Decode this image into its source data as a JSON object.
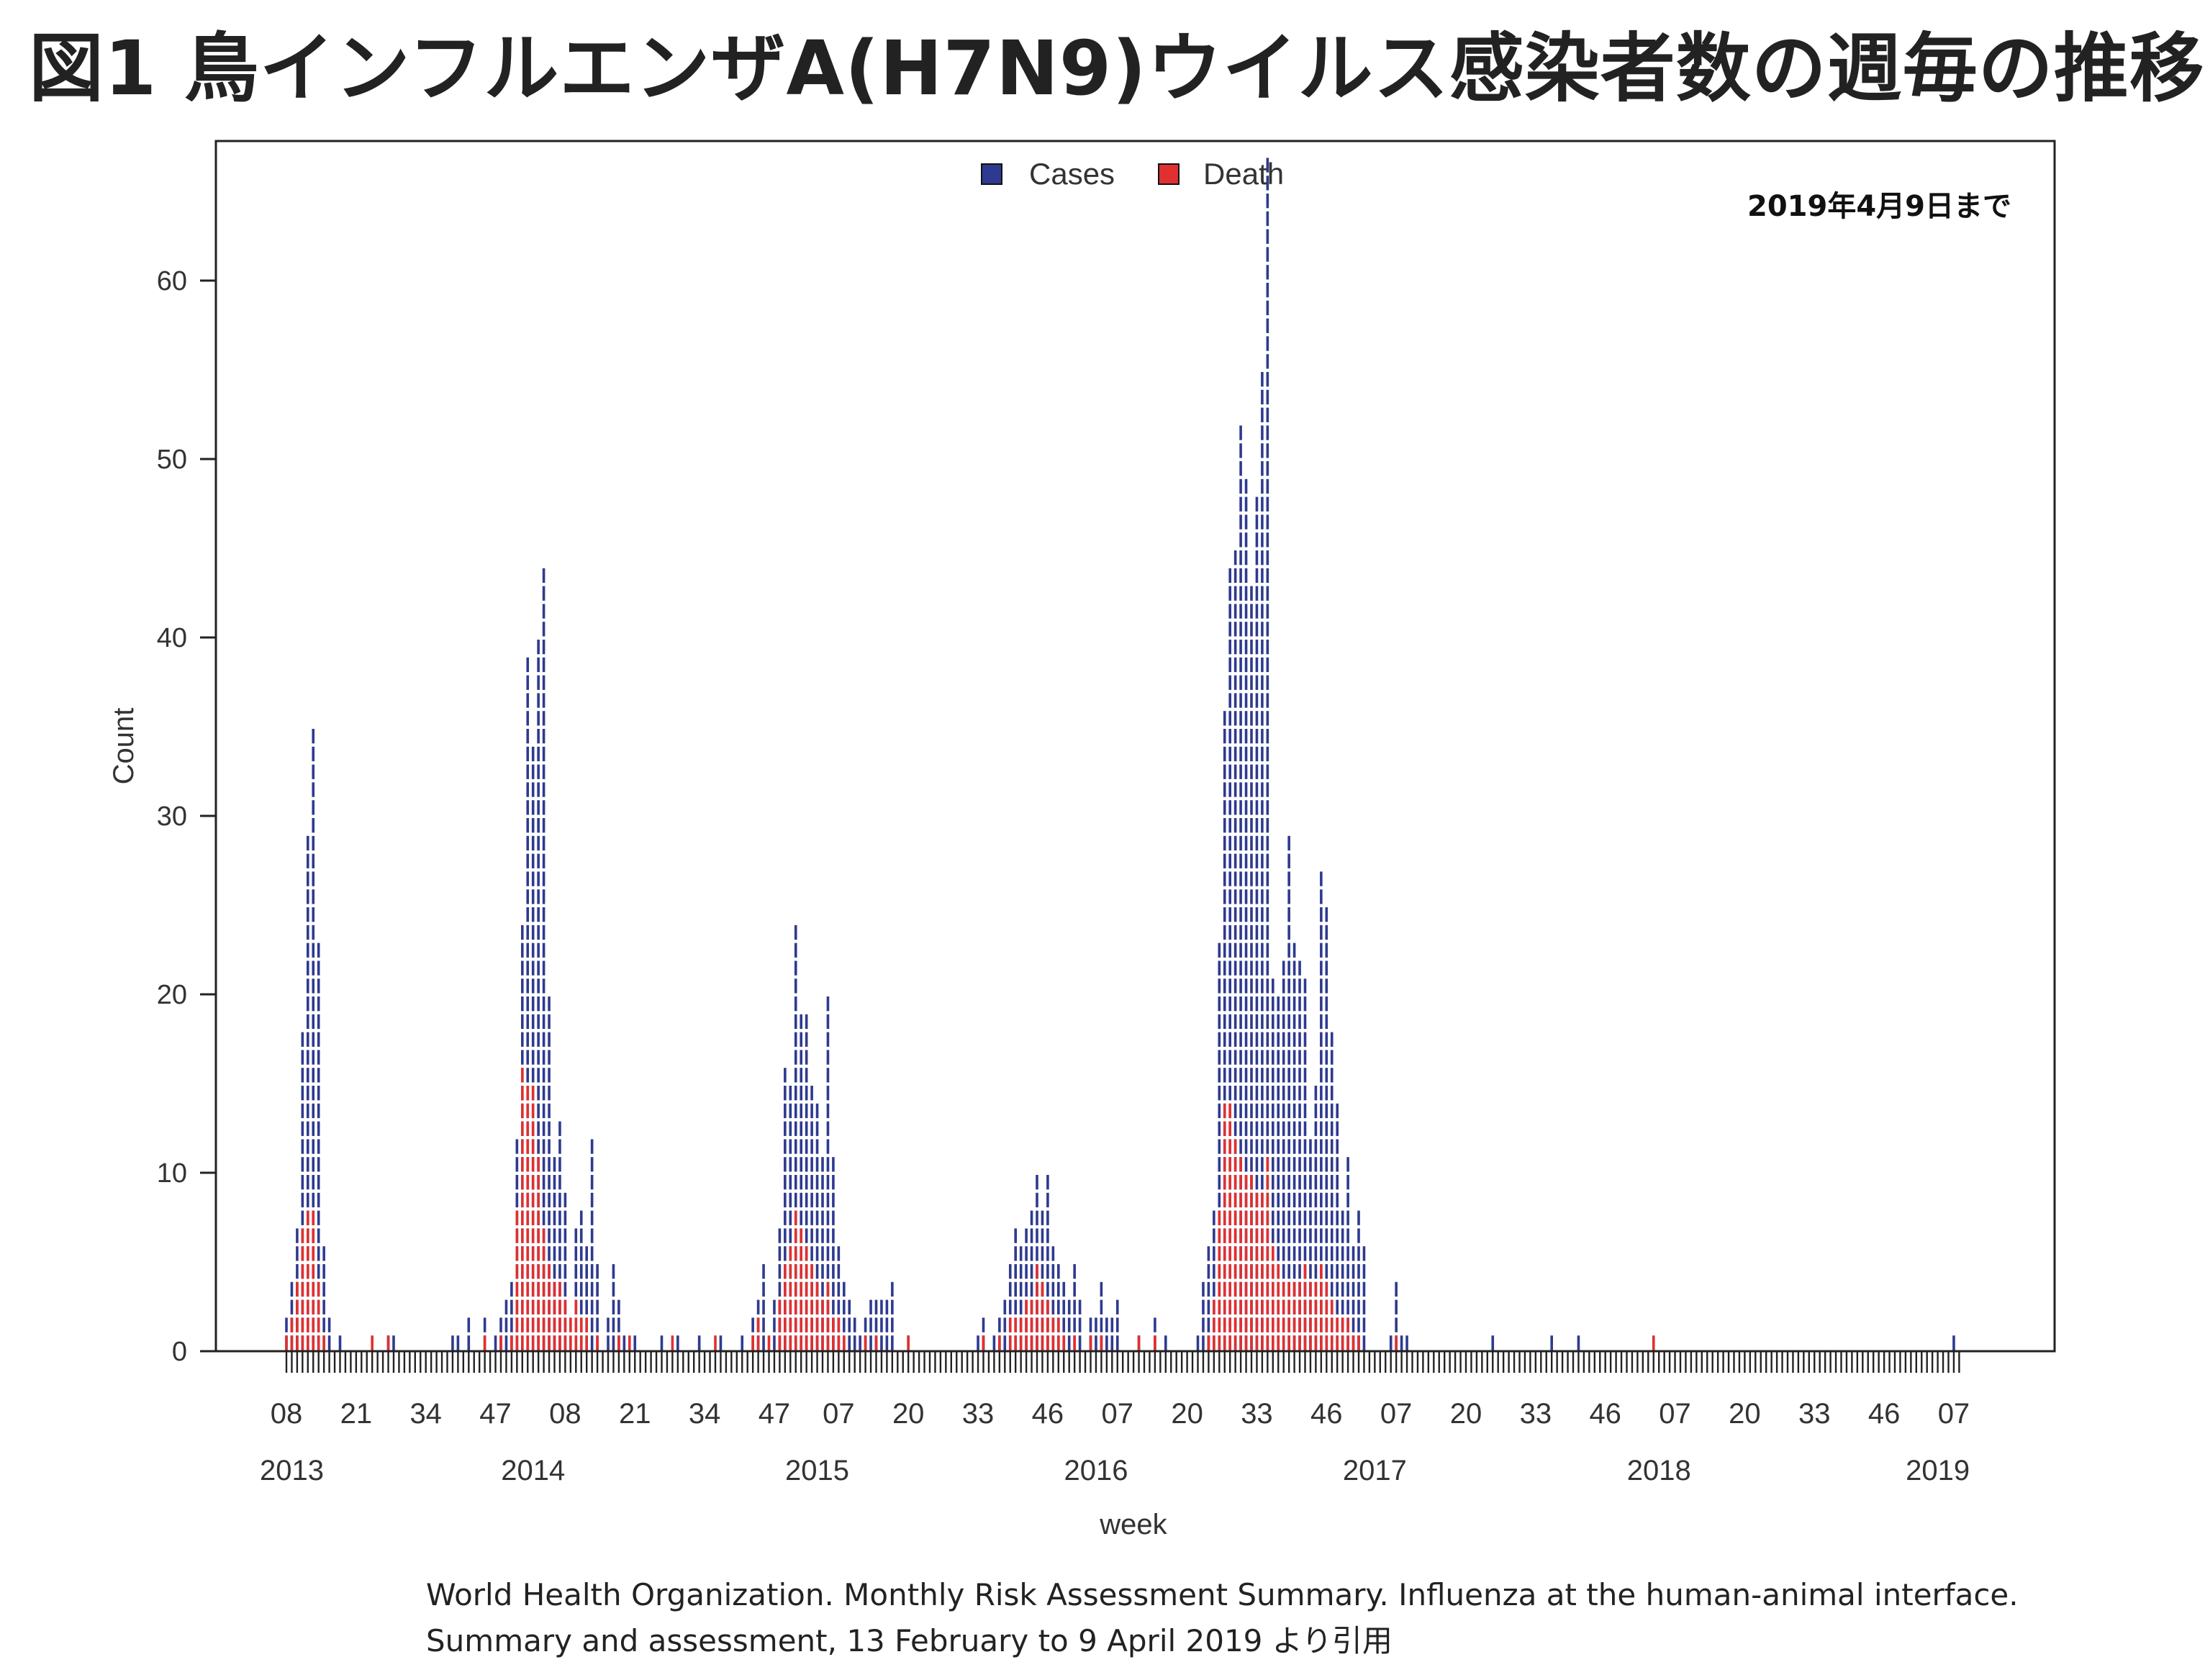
{
  "title": "図1 鳥インフルエンザA(H7N9)ウイルス感染者数の週毎の推移",
  "annotation": "2019年4月9日まで",
  "source": {
    "line1": "World Health Organization. Monthly Risk Assessment Summary. Influenza at the human-animal interface.",
    "line2": "Summary and assessment, 13 February to 9 April 2019 より引用"
  },
  "colors": {
    "cases": "#2e3a8f",
    "death": "#e03030",
    "axis": "#333333"
  },
  "chart_data": {
    "type": "bar",
    "xlabel": "week",
    "ylabel": "Count",
    "ylim": [
      0,
      70
    ],
    "y_ticks": [
      0,
      10,
      20,
      30,
      40,
      50,
      60
    ],
    "legend": {
      "position": "top-center",
      "entries": [
        "Cases",
        "Death"
      ]
    },
    "grid": false,
    "x_week_ticks": [
      {
        "label": "08",
        "week": 8
      },
      {
        "label": "21",
        "week": 21
      },
      {
        "label": "34",
        "week": 34
      },
      {
        "label": "47",
        "week": 47
      },
      {
        "label": "08",
        "week": 60
      },
      {
        "label": "21",
        "week": 73
      },
      {
        "label": "34",
        "week": 86
      },
      {
        "label": "47",
        "week": 99
      },
      {
        "label": "07",
        "week": 111
      },
      {
        "label": "20",
        "week": 124
      },
      {
        "label": "33",
        "week": 137
      },
      {
        "label": "46",
        "week": 150
      },
      {
        "label": "07",
        "week": 163
      },
      {
        "label": "20",
        "week": 176
      },
      {
        "label": "33",
        "week": 189
      },
      {
        "label": "46",
        "week": 202
      },
      {
        "label": "07",
        "week": 215
      },
      {
        "label": "20",
        "week": 228
      },
      {
        "label": "33",
        "week": 241
      },
      {
        "label": "46",
        "week": 254
      },
      {
        "label": "07",
        "week": 267
      },
      {
        "label": "20",
        "week": 280
      },
      {
        "label": "33",
        "week": 293
      },
      {
        "label": "46",
        "week": 306
      },
      {
        "label": "07",
        "week": 319
      }
    ],
    "x_year_labels": [
      {
        "label": "2013",
        "week": 9
      },
      {
        "label": "2014",
        "week": 54
      },
      {
        "label": "2015",
        "week": 107
      },
      {
        "label": "2016",
        "week": 159
      },
      {
        "label": "2017",
        "week": 211
      },
      {
        "label": "2018",
        "week": 264
      },
      {
        "label": "2019",
        "week": 316
      }
    ],
    "series": [
      {
        "name": "Cases",
        "points": [
          [
            8,
            2
          ],
          [
            9,
            4
          ],
          [
            10,
            7
          ],
          [
            11,
            18
          ],
          [
            12,
            29
          ],
          [
            13,
            35
          ],
          [
            14,
            23
          ],
          [
            15,
            6
          ],
          [
            16,
            2
          ],
          [
            18,
            1
          ],
          [
            27,
            1
          ],
          [
            28,
            1
          ],
          [
            39,
            1
          ],
          [
            40,
            1
          ],
          [
            42,
            2
          ],
          [
            45,
            2
          ],
          [
            47,
            1
          ],
          [
            48,
            2
          ],
          [
            49,
            3
          ],
          [
            50,
            4
          ],
          [
            51,
            12
          ],
          [
            52,
            24
          ],
          [
            53,
            39
          ],
          [
            54,
            34
          ],
          [
            55,
            40
          ],
          [
            56,
            44
          ],
          [
            57,
            20
          ],
          [
            58,
            11
          ],
          [
            59,
            13
          ],
          [
            60,
            9
          ],
          [
            62,
            7
          ],
          [
            63,
            8
          ],
          [
            64,
            6
          ],
          [
            65,
            12
          ],
          [
            66,
            5
          ],
          [
            68,
            2
          ],
          [
            69,
            5
          ],
          [
            70,
            3
          ],
          [
            71,
            1
          ],
          [
            73,
            1
          ],
          [
            78,
            1
          ],
          [
            81,
            1
          ],
          [
            85,
            1
          ],
          [
            89,
            1
          ],
          [
            93,
            1
          ],
          [
            95,
            2
          ],
          [
            96,
            3
          ],
          [
            97,
            5
          ],
          [
            99,
            3
          ],
          [
            100,
            7
          ],
          [
            101,
            16
          ],
          [
            102,
            15
          ],
          [
            103,
            24
          ],
          [
            104,
            19
          ],
          [
            105,
            19
          ],
          [
            106,
            15
          ],
          [
            107,
            14
          ],
          [
            108,
            11
          ],
          [
            109,
            20
          ],
          [
            110,
            11
          ],
          [
            111,
            6
          ],
          [
            112,
            4
          ],
          [
            113,
            3
          ],
          [
            114,
            2
          ],
          [
            115,
            1
          ],
          [
            116,
            2
          ],
          [
            117,
            3
          ],
          [
            118,
            3
          ],
          [
            119,
            3
          ],
          [
            120,
            3
          ],
          [
            121,
            4
          ],
          [
            124,
            1
          ],
          [
            137,
            1
          ],
          [
            138,
            2
          ],
          [
            140,
            1
          ],
          [
            141,
            2
          ],
          [
            142,
            3
          ],
          [
            143,
            5
          ],
          [
            144,
            7
          ],
          [
            145,
            6
          ],
          [
            146,
            7
          ],
          [
            147,
            8
          ],
          [
            148,
            10
          ],
          [
            149,
            8
          ],
          [
            150,
            10
          ],
          [
            151,
            6
          ],
          [
            152,
            5
          ],
          [
            153,
            4
          ],
          [
            154,
            3
          ],
          [
            155,
            5
          ],
          [
            156,
            3
          ],
          [
            158,
            2
          ],
          [
            159,
            2
          ],
          [
            160,
            4
          ],
          [
            161,
            2
          ],
          [
            162,
            2
          ],
          [
            163,
            3
          ],
          [
            167,
            1
          ],
          [
            170,
            2
          ],
          [
            172,
            1
          ],
          [
            178,
            1
          ],
          [
            179,
            4
          ],
          [
            180,
            6
          ],
          [
            181,
            8
          ],
          [
            182,
            23
          ],
          [
            183,
            36
          ],
          [
            184,
            44
          ],
          [
            185,
            45
          ],
          [
            186,
            52
          ],
          [
            187,
            49
          ],
          [
            188,
            43
          ],
          [
            189,
            48
          ],
          [
            190,
            55
          ],
          [
            191,
            67
          ],
          [
            192,
            21
          ],
          [
            193,
            20
          ],
          [
            194,
            22
          ],
          [
            195,
            29
          ],
          [
            196,
            23
          ],
          [
            197,
            22
          ],
          [
            198,
            21
          ],
          [
            199,
            12
          ],
          [
            200,
            15
          ],
          [
            201,
            27
          ],
          [
            202,
            25
          ],
          [
            203,
            18
          ],
          [
            204,
            14
          ],
          [
            205,
            8
          ],
          [
            206,
            11
          ],
          [
            207,
            6
          ],
          [
            208,
            8
          ],
          [
            209,
            6
          ],
          [
            214,
            1
          ],
          [
            215,
            4
          ],
          [
            216,
            1
          ],
          [
            217,
            1
          ],
          [
            233,
            1
          ],
          [
            244,
            1
          ],
          [
            249,
            1
          ],
          [
            319,
            1
          ]
        ]
      },
      {
        "name": "Death",
        "points": [
          [
            8,
            1
          ],
          [
            9,
            2
          ],
          [
            10,
            4
          ],
          [
            11,
            7
          ],
          [
            12,
            8
          ],
          [
            13,
            8
          ],
          [
            14,
            4
          ],
          [
            15,
            1
          ],
          [
            24,
            1
          ],
          [
            27,
            1
          ],
          [
            45,
            1
          ],
          [
            48,
            1
          ],
          [
            50,
            1
          ],
          [
            51,
            8
          ],
          [
            52,
            16
          ],
          [
            53,
            15
          ],
          [
            54,
            15
          ],
          [
            55,
            11
          ],
          [
            56,
            7
          ],
          [
            57,
            5
          ],
          [
            58,
            4
          ],
          [
            59,
            4
          ],
          [
            60,
            3
          ],
          [
            61,
            2
          ],
          [
            62,
            3
          ],
          [
            63,
            2
          ],
          [
            64,
            2
          ],
          [
            66,
            1
          ],
          [
            70,
            1
          ],
          [
            72,
            1
          ],
          [
            80,
            1
          ],
          [
            88,
            1
          ],
          [
            95,
            1
          ],
          [
            96,
            2
          ],
          [
            98,
            1
          ],
          [
            100,
            3
          ],
          [
            101,
            5
          ],
          [
            102,
            6
          ],
          [
            103,
            8
          ],
          [
            104,
            7
          ],
          [
            105,
            6
          ],
          [
            106,
            5
          ],
          [
            107,
            4
          ],
          [
            108,
            3
          ],
          [
            109,
            4
          ],
          [
            110,
            2
          ],
          [
            111,
            2
          ],
          [
            112,
            1
          ],
          [
            116,
            1
          ],
          [
            118,
            1
          ],
          [
            124,
            1
          ],
          [
            138,
            1
          ],
          [
            141,
            1
          ],
          [
            143,
            2
          ],
          [
            144,
            2
          ],
          [
            145,
            2
          ],
          [
            146,
            3
          ],
          [
            147,
            3
          ],
          [
            148,
            5
          ],
          [
            149,
            4
          ],
          [
            150,
            3
          ],
          [
            151,
            2
          ],
          [
            152,
            2
          ],
          [
            153,
            1
          ],
          [
            155,
            1
          ],
          [
            158,
            1
          ],
          [
            160,
            1
          ],
          [
            167,
            1
          ],
          [
            170,
            1
          ],
          [
            180,
            1
          ],
          [
            181,
            3
          ],
          [
            182,
            8
          ],
          [
            183,
            14
          ],
          [
            184,
            14
          ],
          [
            185,
            12
          ],
          [
            186,
            11
          ],
          [
            187,
            10
          ],
          [
            188,
            10
          ],
          [
            189,
            9
          ],
          [
            190,
            9
          ],
          [
            191,
            11
          ],
          [
            192,
            6
          ],
          [
            193,
            5
          ],
          [
            194,
            4
          ],
          [
            195,
            4
          ],
          [
            196,
            4
          ],
          [
            197,
            4
          ],
          [
            198,
            5
          ],
          [
            199,
            4
          ],
          [
            200,
            4
          ],
          [
            201,
            5
          ],
          [
            202,
            4
          ],
          [
            203,
            3
          ],
          [
            204,
            2
          ],
          [
            205,
            2
          ],
          [
            206,
            2
          ],
          [
            207,
            1
          ],
          [
            208,
            1
          ],
          [
            215,
            1
          ],
          [
            263,
            1
          ]
        ]
      }
    ]
  }
}
